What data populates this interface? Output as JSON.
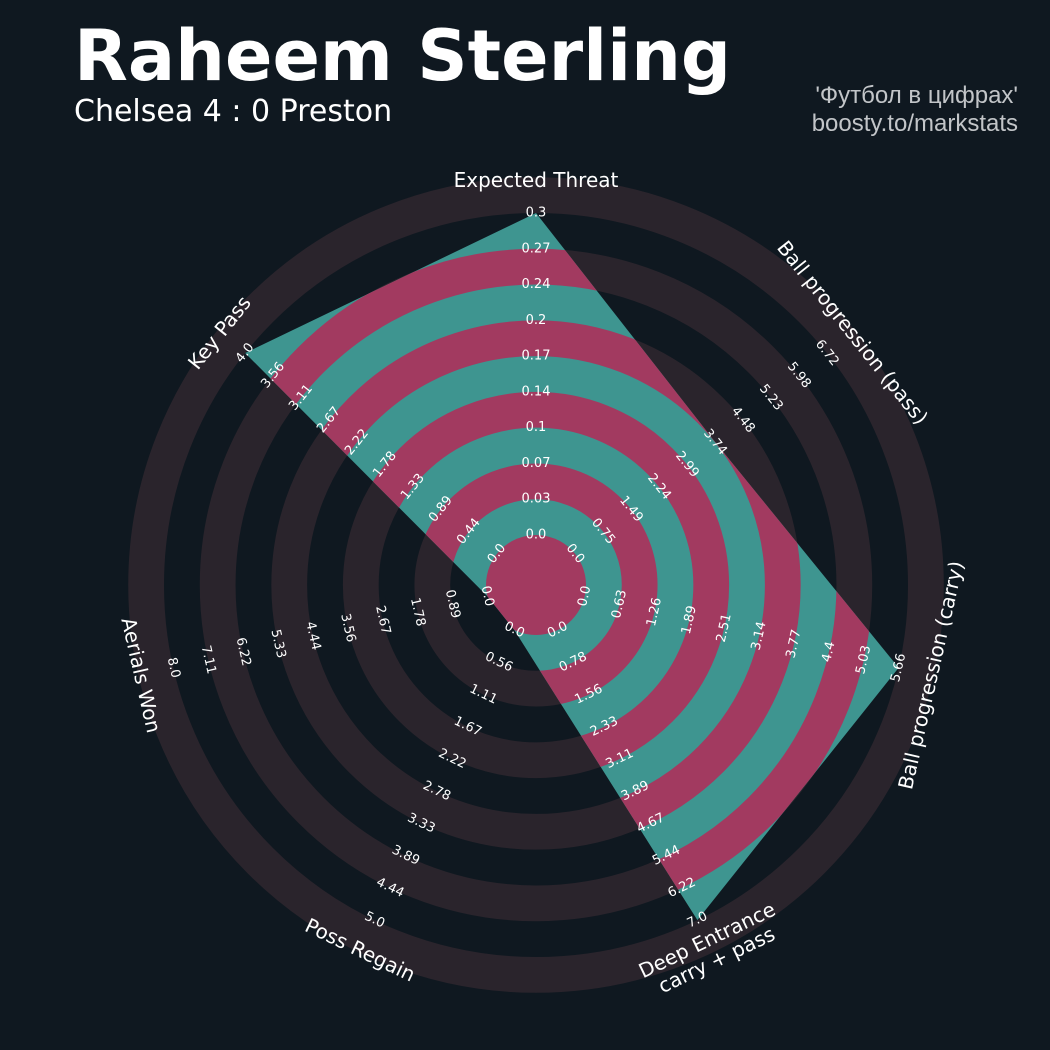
{
  "header": {
    "title": "Raheem Sterling",
    "subtitle": "Chelsea 4 : 0 Preston",
    "credit_line1": "'Футбол в цифрах'",
    "credit_line2": "boosty.to/markstats"
  },
  "colors": {
    "background": "#0f1820",
    "ring_band": "#2a242c",
    "fill_base": "#3e9590",
    "fill_alt": "#a23a60"
  },
  "chart_data": {
    "type": "radar",
    "title": "Raheem Sterling",
    "subtitle": "Chelsea 4 : 0 Preston",
    "params": [
      {
        "label": [
          "Expected Threat"
        ],
        "min": 0.0,
        "max": 0.3,
        "value": 0.3,
        "ticks": [
          "0.0",
          "0.03",
          "0.07",
          "0.1",
          "0.14",
          "0.17",
          "0.2",
          "0.24",
          "0.27",
          "0.3"
        ]
      },
      {
        "label": [
          "Ball progression (pass)"
        ],
        "min": 0.0,
        "max": 6.72,
        "value": 3.74,
        "ticks": [
          "0.0",
          "0.75",
          "1.49",
          "2.24",
          "2.99",
          "3.74",
          "4.48",
          "5.23",
          "5.98",
          "6.72"
        ]
      },
      {
        "label": [
          "Ball progression (carry)"
        ],
        "min": 0.0,
        "max": 5.66,
        "value": 5.66,
        "ticks": [
          "0.0",
          "0.63",
          "1.26",
          "1.89",
          "2.51",
          "3.14",
          "3.77",
          "4.4",
          "5.03",
          "5.66"
        ]
      },
      {
        "label": [
          "Deep Entrance",
          "carry + pass"
        ],
        "min": 0.0,
        "max": 7.0,
        "value": 7.0,
        "ticks": [
          "0.0",
          "0.78",
          "1.56",
          "2.33",
          "3.11",
          "3.89",
          "4.67",
          "5.44",
          "6.22",
          "7.0"
        ]
      },
      {
        "label": [
          "Poss Regain"
        ],
        "min": 0.0,
        "max": 5.0,
        "value": 0.0,
        "ticks": [
          "0.0",
          "0.56",
          "1.11",
          "1.67",
          "2.22",
          "2.78",
          "3.33",
          "3.89",
          "4.44",
          "5.0"
        ]
      },
      {
        "label": [
          "Aerials Won"
        ],
        "min": 0.0,
        "max": 8.0,
        "value": 0.0,
        "ticks": [
          "0.0",
          "0.89",
          "1.78",
          "2.67",
          "3.56",
          "4.44",
          "5.33",
          "6.22",
          "7.11",
          "8.0"
        ]
      },
      {
        "label": [
          "Key Pass"
        ],
        "min": 0.0,
        "max": 4.0,
        "value": 4.0,
        "ticks": [
          "0.0",
          "0.44",
          "0.89",
          "1.33",
          "1.78",
          "2.22",
          "2.67",
          "3.11",
          "3.56",
          "4.0"
        ]
      }
    ]
  }
}
